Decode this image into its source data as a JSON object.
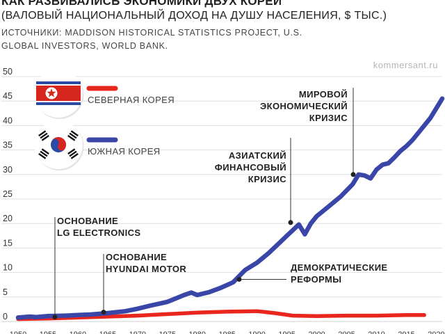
{
  "header": {
    "title": "КАК РАЗВИВАЛИСЬ ЭКОНОМИКИ ДВУХ КОРЕЙ",
    "subtitle": "(ВАЛОВЫЙ НАЦИОНАЛЬНЫЙ ДОХОД НА ДУШУ НАСЕЛЕНИЯ, $ ТЫС.)",
    "sources": "ИСТОЧНИКИ: MADDISON HISTORICAL STATISTICS PROJECT, U.S. GLOBAL INVESTORS, WORLD BANK.",
    "brand": "kommersant.ru"
  },
  "colors": {
    "north": "#e8261e",
    "south": "#3a45a8",
    "grid": "#d9d9d9",
    "annotation": "#333333"
  },
  "icons": {
    "north_flag": "north-korea-flag-icon",
    "south_flag": "south-korea-flag-icon"
  },
  "chart_data": {
    "type": "line",
    "title": "КАК РАЗВИВАЛИСЬ ЭКОНОМИКИ ДВУХ КОРЕЙ",
    "ylabel": "",
    "xlabel": "",
    "ylim": [
      0,
      50
    ],
    "xlim": [
      1950,
      2021
    ],
    "yticks": [
      0,
      5,
      10,
      15,
      20,
      25,
      30,
      35,
      40,
      45,
      50
    ],
    "xticks": [
      1950,
      1955,
      1960,
      1965,
      1970,
      1975,
      1980,
      1985,
      1990,
      1995,
      2000,
      2005,
      2010,
      2015,
      2020
    ],
    "grid": true,
    "legend_position": "top-left",
    "series": [
      {
        "name": "СЕВЕРНАЯ КОРЕЯ",
        "x": [
          1950,
          1955,
          1960,
          1965,
          1970,
          1975,
          1980,
          1985,
          1990,
          1993,
          1996,
          2000,
          2005,
          2010,
          2015,
          2018
        ],
        "values": [
          0.5,
          0.6,
          0.8,
          1.0,
          1.2,
          1.5,
          1.8,
          2.0,
          2.1,
          1.7,
          1.2,
          1.1,
          1.2,
          1.2,
          1.3,
          1.3
        ]
      },
      {
        "name": "ЮЖНАЯ КОРЕЯ",
        "x": [
          1950,
          1952,
          1953,
          1955,
          1958,
          1960,
          1962,
          1965,
          1968,
          1970,
          1972,
          1975,
          1978,
          1979,
          1980,
          1982,
          1984,
          1986,
          1988,
          1990,
          1992,
          1995,
          1997,
          1998,
          1999,
          2000,
          2002,
          2004,
          2006,
          2007,
          2008,
          2009,
          2010,
          2011,
          2012,
          2013,
          2014,
          2015,
          2016,
          2017,
          2018,
          2019,
          2020,
          2021
        ],
        "values": [
          0.8,
          1.0,
          0.9,
          1.1,
          1.2,
          1.3,
          1.4,
          1.7,
          2.1,
          2.6,
          3.2,
          4.0,
          5.5,
          5.9,
          5.4,
          6.0,
          6.9,
          8.0,
          10.5,
          12.0,
          14.0,
          17.5,
          19.8,
          17.8,
          20.0,
          21.5,
          23.5,
          25.5,
          28.0,
          30.0,
          29.8,
          29.2,
          31.0,
          32.0,
          32.3,
          33.5,
          34.8,
          35.8,
          37.0,
          38.5,
          40.0,
          41.5,
          43.5,
          45.5
        ]
      }
    ],
    "annotations": [
      {
        "lines": [
          "ОСНОВАНИЕ",
          "LG ELECTRONICS"
        ],
        "x": 1958,
        "y": 0.9
      },
      {
        "lines": [
          "ОСНОВАНИЕ",
          "HYUNDAI MOTOR"
        ],
        "x": 1967,
        "y": 1.9
      },
      {
        "lines": [
          "ДЕМОКРАТИЧЕСКИЕ",
          "РЕФОРМЫ"
        ],
        "x": 1987,
        "y": 8.6
      },
      {
        "lines": [
          "АЗИАТСКИЙ",
          "ФИНАНСОВЫЙ",
          "КРИЗИС"
        ],
        "x": 1997,
        "y": 20.2
      },
      {
        "lines": [
          "МИРОВОЙ",
          "ЭКОНОМИЧЕСКИЙ",
          "КРИЗИС"
        ],
        "x": 2008,
        "y": 30.0
      }
    ]
  }
}
